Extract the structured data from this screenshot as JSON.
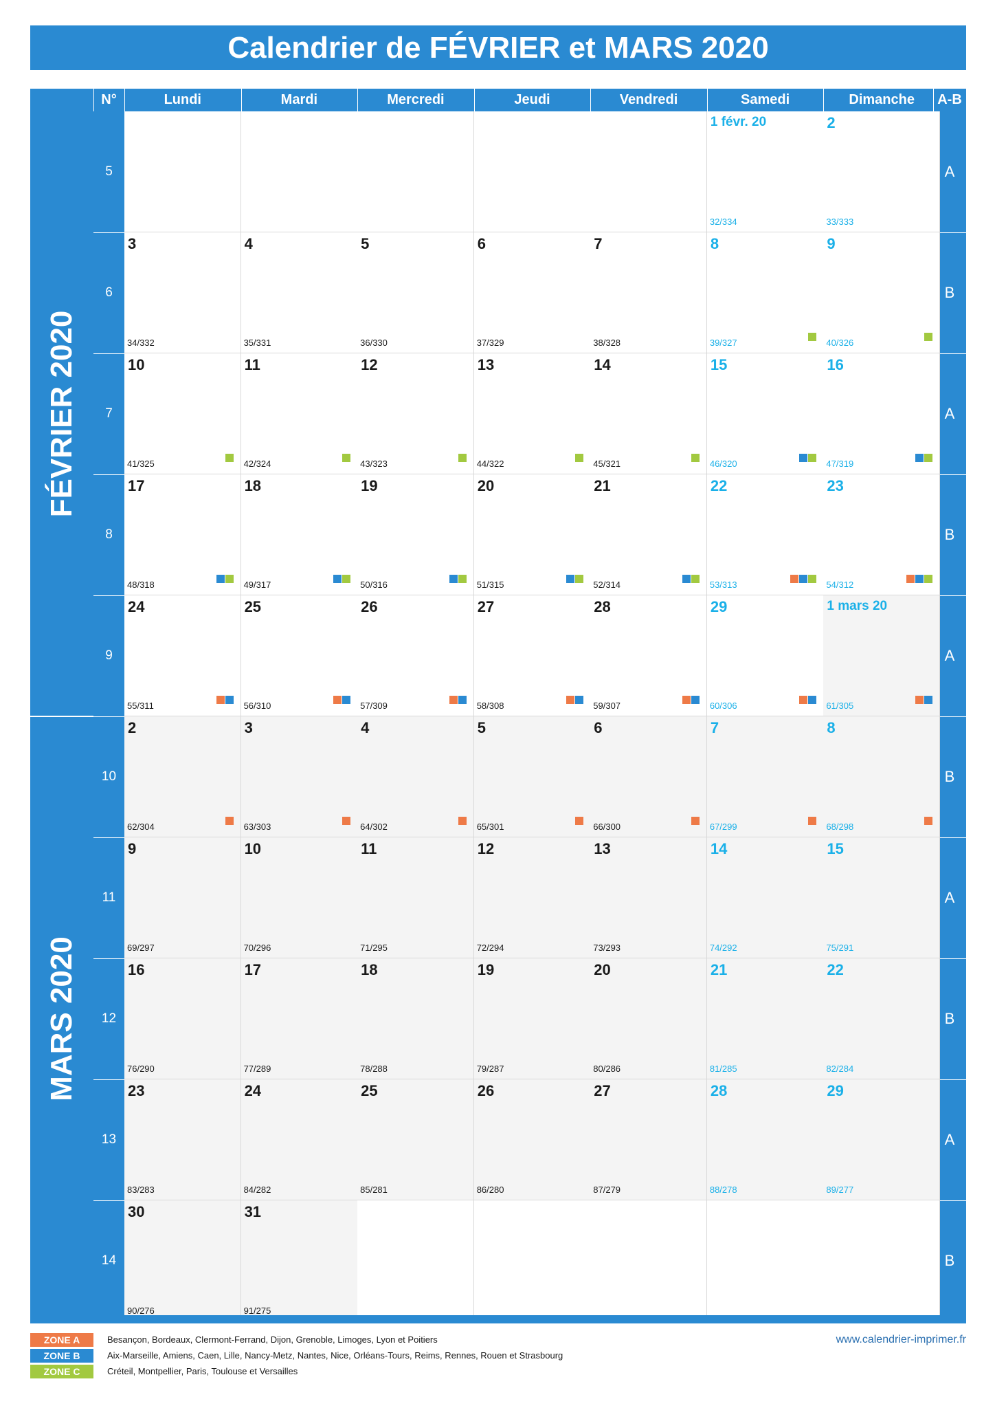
{
  "title": "Calendrier de FÉVRIER et MARS 2020",
  "header": {
    "num_label": "N°",
    "days": [
      "Lundi",
      "Mardi",
      "Mercredi",
      "Jeudi",
      "Vendredi",
      "Samedi",
      "Dimanche"
    ],
    "ab_label": "A-B"
  },
  "months": [
    {
      "label": "FÉVRIER 2020",
      "rows": [
        0,
        4
      ]
    },
    {
      "label": "MARS 2020",
      "rows": [
        5,
        9
      ]
    }
  ],
  "weeks": [
    {
      "num": "5",
      "ab": "A",
      "days": [
        null,
        null,
        null,
        null,
        null,
        {
          "label": "1 févr. 20",
          "count": "32/334",
          "we": true,
          "small": true
        },
        {
          "label": "2",
          "count": "33/333",
          "we": true
        }
      ]
    },
    {
      "num": "6",
      "ab": "B",
      "days": [
        {
          "label": "3",
          "count": "34/332"
        },
        {
          "label": "4",
          "count": "35/331"
        },
        {
          "label": "5",
          "count": "36/330"
        },
        {
          "label": "6",
          "count": "37/329"
        },
        {
          "label": "7",
          "count": "38/328"
        },
        {
          "label": "8",
          "count": "39/327",
          "we": true,
          "zones": [
            "C"
          ]
        },
        {
          "label": "9",
          "count": "40/326",
          "we": true,
          "zones": [
            "C"
          ]
        }
      ]
    },
    {
      "num": "7",
      "ab": "A",
      "days": [
        {
          "label": "10",
          "count": "41/325",
          "zones": [
            "C"
          ]
        },
        {
          "label": "11",
          "count": "42/324",
          "zones": [
            "C"
          ]
        },
        {
          "label": "12",
          "count": "43/323",
          "zones": [
            "C"
          ]
        },
        {
          "label": "13",
          "count": "44/322",
          "zones": [
            "C"
          ]
        },
        {
          "label": "14",
          "count": "45/321",
          "zones": [
            "C"
          ]
        },
        {
          "label": "15",
          "count": "46/320",
          "we": true,
          "zones": [
            "B",
            "C"
          ]
        },
        {
          "label": "16",
          "count": "47/319",
          "we": true,
          "zones": [
            "B",
            "C"
          ]
        }
      ]
    },
    {
      "num": "8",
      "ab": "B",
      "days": [
        {
          "label": "17",
          "count": "48/318",
          "zones": [
            "B",
            "C"
          ]
        },
        {
          "label": "18",
          "count": "49/317",
          "zones": [
            "B",
            "C"
          ]
        },
        {
          "label": "19",
          "count": "50/316",
          "zones": [
            "B",
            "C"
          ]
        },
        {
          "label": "20",
          "count": "51/315",
          "zones": [
            "B",
            "C"
          ]
        },
        {
          "label": "21",
          "count": "52/314",
          "zones": [
            "B",
            "C"
          ]
        },
        {
          "label": "22",
          "count": "53/313",
          "we": true,
          "zones": [
            "A",
            "B",
            "C"
          ]
        },
        {
          "label": "23",
          "count": "54/312",
          "we": true,
          "zones": [
            "A",
            "B",
            "C"
          ]
        }
      ]
    },
    {
      "num": "9",
      "ab": "A",
      "days": [
        {
          "label": "24",
          "count": "55/311",
          "zones": [
            "A",
            "B"
          ]
        },
        {
          "label": "25",
          "count": "56/310",
          "zones": [
            "A",
            "B"
          ]
        },
        {
          "label": "26",
          "count": "57/309",
          "zones": [
            "A",
            "B"
          ]
        },
        {
          "label": "27",
          "count": "58/308",
          "zones": [
            "A",
            "B"
          ]
        },
        {
          "label": "28",
          "count": "59/307",
          "zones": [
            "A",
            "B"
          ]
        },
        {
          "label": "29",
          "count": "60/306",
          "we": true,
          "zones": [
            "A",
            "B"
          ]
        },
        {
          "label": "1 mars 20",
          "count": "61/305",
          "we": true,
          "small": true,
          "gray": true,
          "zones": [
            "A",
            "B"
          ]
        }
      ]
    },
    {
      "num": "10",
      "ab": "B",
      "days": [
        {
          "label": "2",
          "count": "62/304",
          "gray": true,
          "zones": [
            "A"
          ]
        },
        {
          "label": "3",
          "count": "63/303",
          "gray": true,
          "zones": [
            "A"
          ]
        },
        {
          "label": "4",
          "count": "64/302",
          "gray": true,
          "zones": [
            "A"
          ]
        },
        {
          "label": "5",
          "count": "65/301",
          "gray": true,
          "zones": [
            "A"
          ]
        },
        {
          "label": "6",
          "count": "66/300",
          "gray": true,
          "zones": [
            "A"
          ]
        },
        {
          "label": "7",
          "count": "67/299",
          "we": true,
          "gray": true,
          "zones": [
            "A"
          ]
        },
        {
          "label": "8",
          "count": "68/298",
          "we": true,
          "gray": true,
          "zones": [
            "A"
          ]
        }
      ]
    },
    {
      "num": "11",
      "ab": "A",
      "days": [
        {
          "label": "9",
          "count": "69/297",
          "gray": true
        },
        {
          "label": "10",
          "count": "70/296",
          "gray": true
        },
        {
          "label": "11",
          "count": "71/295",
          "gray": true
        },
        {
          "label": "12",
          "count": "72/294",
          "gray": true
        },
        {
          "label": "13",
          "count": "73/293",
          "gray": true
        },
        {
          "label": "14",
          "count": "74/292",
          "we": true,
          "gray": true
        },
        {
          "label": "15",
          "count": "75/291",
          "we": true,
          "gray": true
        }
      ]
    },
    {
      "num": "12",
      "ab": "B",
      "days": [
        {
          "label": "16",
          "count": "76/290",
          "gray": true
        },
        {
          "label": "17",
          "count": "77/289",
          "gray": true
        },
        {
          "label": "18",
          "count": "78/288",
          "gray": true
        },
        {
          "label": "19",
          "count": "79/287",
          "gray": true
        },
        {
          "label": "20",
          "count": "80/286",
          "gray": true
        },
        {
          "label": "21",
          "count": "81/285",
          "we": true,
          "gray": true
        },
        {
          "label": "22",
          "count": "82/284",
          "we": true,
          "gray": true
        }
      ]
    },
    {
      "num": "13",
      "ab": "A",
      "days": [
        {
          "label": "23",
          "count": "83/283",
          "gray": true
        },
        {
          "label": "24",
          "count": "84/282",
          "gray": true
        },
        {
          "label": "25",
          "count": "85/281",
          "gray": true
        },
        {
          "label": "26",
          "count": "86/280",
          "gray": true
        },
        {
          "label": "27",
          "count": "87/279",
          "gray": true
        },
        {
          "label": "28",
          "count": "88/278",
          "we": true,
          "gray": true
        },
        {
          "label": "29",
          "count": "89/277",
          "we": true,
          "gray": true
        }
      ]
    },
    {
      "num": "14",
      "ab": "B",
      "days": [
        {
          "label": "30",
          "count": "90/276",
          "gray": true
        },
        {
          "label": "31",
          "count": "91/275",
          "gray": true
        },
        null,
        null,
        null,
        null,
        null
      ]
    }
  ],
  "legend": [
    {
      "zone": "ZONE A",
      "color": "#ee7a47",
      "text": "Besançon, Bordeaux, Clermont-Ferrand, Dijon, Grenoble, Limoges, Lyon et Poitiers"
    },
    {
      "zone": "ZONE B",
      "color": "#2a8ad2",
      "text": "Aix-Marseille, Amiens, Caen, Lille, Nancy-Metz, Nantes, Nice, Orléans-Tours, Reims, Rennes, Rouen et Strasbourg"
    },
    {
      "zone": "ZONE C",
      "color": "#a2c940",
      "text": "Créteil, Montpellier, Paris, Toulouse et Versailles"
    }
  ],
  "website": "www.calendrier-imprimer.fr",
  "colors": {
    "primary": "#2a8ad2",
    "weekend": "#1ab0e8",
    "zone_a": "#ee7a47",
    "zone_b": "#2a8ad2",
    "zone_c": "#a2c940"
  }
}
